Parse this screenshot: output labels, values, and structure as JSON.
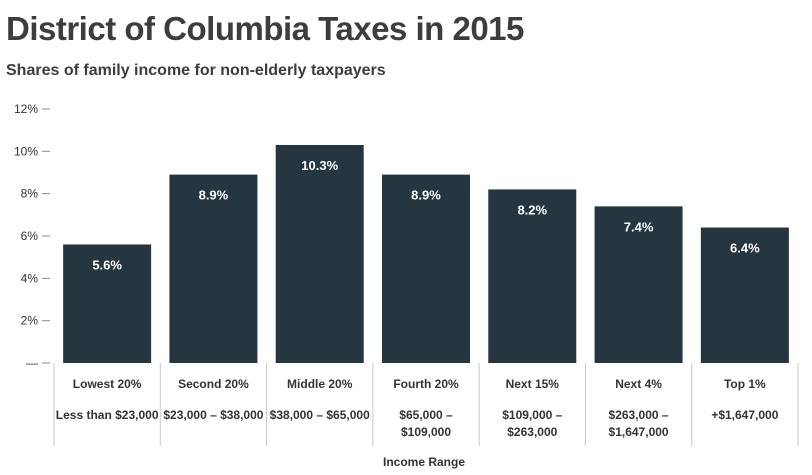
{
  "title": "District of Columbia Taxes in 2015",
  "subtitle": "Shares of family income for non-elderly taxpayers",
  "colors": {
    "bar": "#253641",
    "bar_label": "#ffffff",
    "grid_line": "#c8c8c8",
    "axis": "#888888"
  },
  "chart_data": {
    "type": "bar",
    "xlabel": "Income Range",
    "ylabel": "",
    "ylim": [
      0,
      12
    ],
    "yticks": [
      "—",
      "2%",
      "4%",
      "6%",
      "8%",
      "10%",
      "12%"
    ],
    "categories": [
      "Lowest 20%",
      "Second 20%",
      "Middle 20%",
      "Fourth 20%",
      "Next 15%",
      "Next 4%",
      "Top 1%"
    ],
    "ranges": [
      [
        "Less than $23,000"
      ],
      [
        "$23,000 – $38,000"
      ],
      [
        "$38,000 – $65,000"
      ],
      [
        "$65,000 –",
        "$109,000"
      ],
      [
        "$109,000 –",
        "$263,000"
      ],
      [
        "$263,000 –",
        "$1,647,000"
      ],
      [
        "+$1,647,000"
      ]
    ],
    "values": [
      5.6,
      8.9,
      10.3,
      8.9,
      8.2,
      7.4,
      6.4
    ],
    "value_labels": [
      "5.6%",
      "8.9%",
      "10.3%",
      "8.9%",
      "8.2%",
      "7.4%",
      "6.4%"
    ],
    "grid": false
  }
}
